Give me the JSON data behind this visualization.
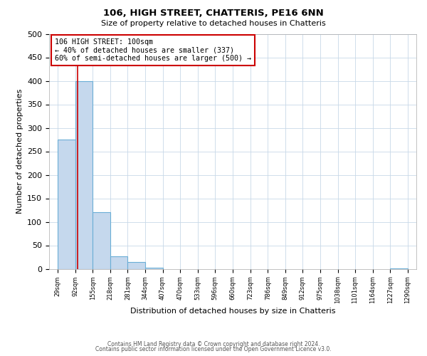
{
  "title": "106, HIGH STREET, CHATTERIS, PE16 6NN",
  "subtitle": "Size of property relative to detached houses in Chatteris",
  "xlabel": "Distribution of detached houses by size in Chatteris",
  "ylabel": "Number of detached properties",
  "bar_edges": [
    29,
    92,
    155,
    218,
    281,
    344,
    407,
    470,
    533,
    596,
    660,
    723,
    786,
    849,
    912,
    975,
    1038,
    1101,
    1164,
    1227,
    1290
  ],
  "bar_heights": [
    275,
    400,
    120,
    27,
    14,
    2,
    0,
    0,
    0,
    0,
    0,
    0,
    0,
    0,
    0,
    0,
    0,
    0,
    0,
    1
  ],
  "bar_color": "#c5d8ed",
  "bar_edge_color": "#6aaed6",
  "property_line_x": 100,
  "property_line_color": "#cc0000",
  "ylim": [
    0,
    500
  ],
  "annotation_title": "106 HIGH STREET: 100sqm",
  "annotation_line1": "← 40% of detached houses are smaller (337)",
  "annotation_line2": "60% of semi-detached houses are larger (500) →",
  "annotation_box_color": "#cc0000",
  "footer1": "Contains HM Land Registry data © Crown copyright and database right 2024.",
  "footer2": "Contains public sector information licensed under the Open Government Licence v3.0.",
  "tick_labels": [
    "29sqm",
    "92sqm",
    "155sqm",
    "218sqm",
    "281sqm",
    "344sqm",
    "407sqm",
    "470sqm",
    "533sqm",
    "596sqm",
    "660sqm",
    "723sqm",
    "786sqm",
    "849sqm",
    "912sqm",
    "975sqm",
    "1038sqm",
    "1101sqm",
    "1164sqm",
    "1227sqm",
    "1290sqm"
  ],
  "background_color": "#ffffff",
  "grid_color": "#c8d8e8",
  "yticks": [
    0,
    50,
    100,
    150,
    200,
    250,
    300,
    350,
    400,
    450,
    500
  ]
}
